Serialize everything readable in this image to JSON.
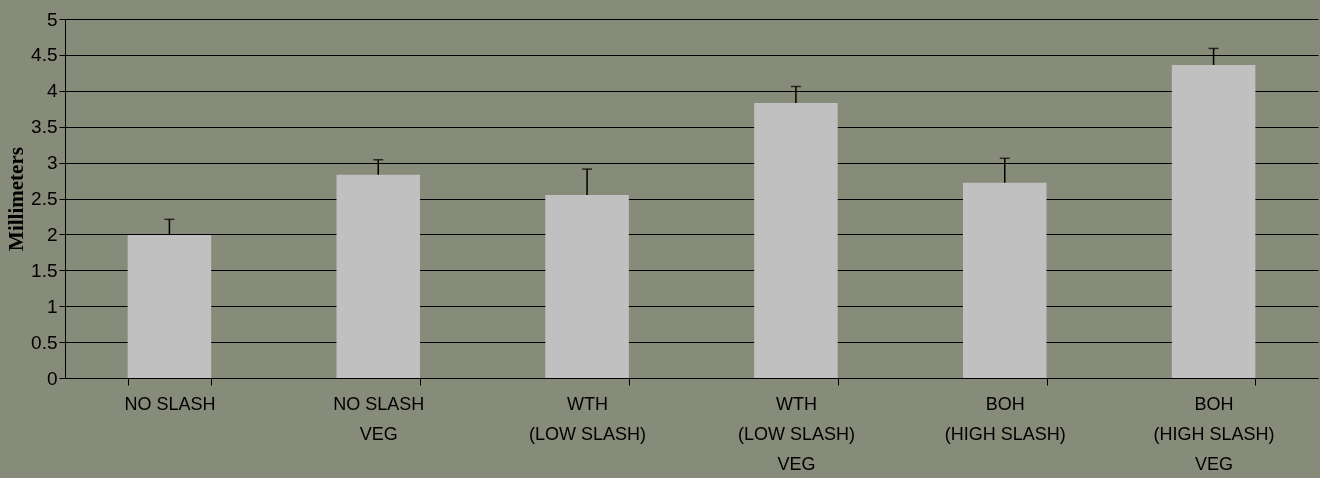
{
  "chart_data": {
    "type": "bar",
    "ylabel": "Millimeters",
    "categories": [
      "NO SLASH",
      "NO SLASH\nVEG",
      "WTH\n(LOW SLASH)",
      "WTH\n(LOW SLASH)\nVEG",
      "BOH\n(HIGH SLASH)",
      "BOH\n(HIGH SLASH)\nVEG"
    ],
    "values": [
      1.99,
      2.83,
      2.55,
      3.83,
      2.72,
      4.36
    ],
    "errors": [
      [
        1.99,
        2.21
      ],
      [
        2.83,
        3.04
      ],
      [
        2.55,
        2.91
      ],
      [
        3.83,
        4.06
      ],
      [
        2.72,
        3.06
      ],
      [
        4.36,
        4.59
      ]
    ],
    "color": "#c0c0c0",
    "ylim": [
      0,
      5
    ],
    "yticks": [
      0,
      0.5,
      1,
      1.5,
      2,
      2.5,
      3,
      3.5,
      4,
      4.5,
      5
    ],
    "grid": "y"
  }
}
